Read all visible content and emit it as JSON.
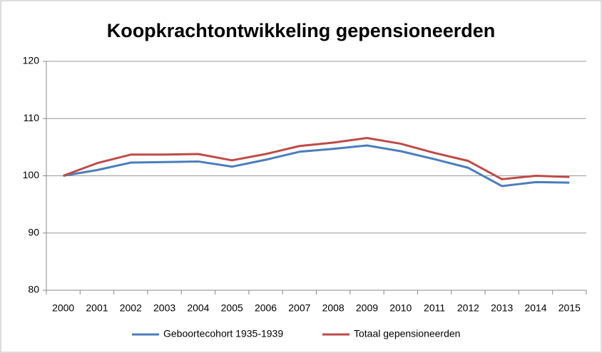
{
  "chart_data": {
    "type": "line",
    "title": "Koopkrachtontwikkeling gepensioneerden",
    "categories": [
      "2000",
      "2001",
      "2002",
      "2003",
      "2004",
      "2005",
      "2006",
      "2007",
      "2008",
      "2009",
      "2010",
      "2011",
      "2012",
      "2013",
      "2014",
      "2015"
    ],
    "series": [
      {
        "name": "Geboortecohort 1935-1939",
        "color": "#4a7ebb",
        "values": [
          100,
          101,
          102.3,
          102.4,
          102.5,
          101.6,
          102.8,
          104.2,
          104.7,
          105.3,
          104.3,
          102.9,
          101.4,
          98.2,
          98.9,
          98.8
        ]
      },
      {
        "name": "Totaal gepensioneerden",
        "color": "#be4b48",
        "values": [
          100,
          102.2,
          103.7,
          103.7,
          103.8,
          102.7,
          103.8,
          105.2,
          105.8,
          106.6,
          105.6,
          104.0,
          102.6,
          99.4,
          100.0,
          99.8
        ]
      }
    ],
    "ylim": [
      80,
      120
    ],
    "yticks": [
      80,
      90,
      100,
      110,
      120
    ],
    "grid": true,
    "legend": "bottom"
  }
}
